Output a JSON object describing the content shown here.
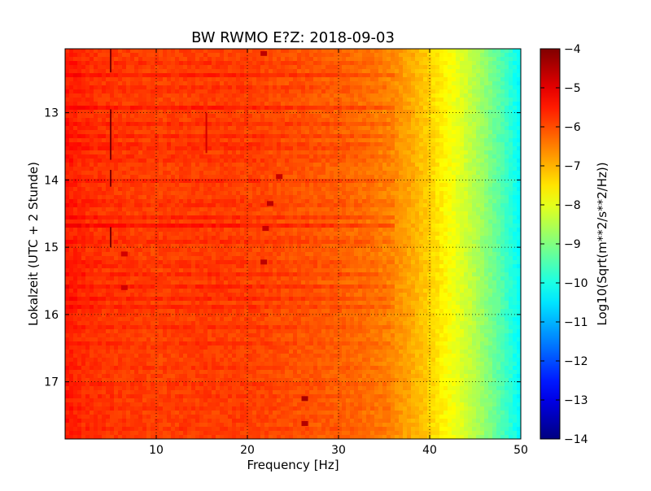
{
  "chart_data": {
    "type": "heatmap",
    "title": "BW RWMO E?Z: 2018-09-03",
    "xlabel": "Frequency [Hz]",
    "ylabel": "Lokalzeit (UTC + 2 Stunde)",
    "xlim": [
      0,
      50
    ],
    "ylim": [
      12.05,
      17.85
    ],
    "y_inverted": true,
    "grid": true,
    "x_ticks": [
      {
        "value": 10,
        "label": "10"
      },
      {
        "value": 20,
        "label": "20"
      },
      {
        "value": 30,
        "label": "30"
      },
      {
        "value": 40,
        "label": "40"
      },
      {
        "value": 50,
        "label": "50"
      }
    ],
    "y_ticks": [
      {
        "value": 13,
        "label": "13"
      },
      {
        "value": 14,
        "label": "14"
      },
      {
        "value": 15,
        "label": "15"
      },
      {
        "value": 16,
        "label": "16"
      },
      {
        "value": 17,
        "label": "17"
      }
    ],
    "colorbar": {
      "label": "Log10(Sqrt(m**2/s**2/Hz))",
      "colormap": "jet",
      "range": [
        -14,
        -4
      ],
      "ticks": [
        {
          "value": -4,
          "label": "−4"
        },
        {
          "value": -5,
          "label": "−5"
        },
        {
          "value": -6,
          "label": "−6"
        },
        {
          "value": -7,
          "label": "−7"
        },
        {
          "value": -8,
          "label": "−8"
        },
        {
          "value": -9,
          "label": "−9"
        },
        {
          "value": -10,
          "label": "−10"
        },
        {
          "value": -11,
          "label": "−11"
        },
        {
          "value": -12,
          "label": "−12"
        },
        {
          "value": -13,
          "label": "−13"
        },
        {
          "value": -14,
          "label": "−14"
        }
      ]
    },
    "frequency_profile": {
      "frequencies": [
        0,
        2,
        5,
        10,
        15,
        20,
        25,
        30,
        33,
        36,
        38,
        40,
        42,
        44,
        46,
        48,
        50
      ],
      "levels": [
        -5.5,
        -5.7,
        -5.8,
        -5.9,
        -5.85,
        -5.9,
        -6.05,
        -6.2,
        -6.35,
        -6.6,
        -6.9,
        -7.3,
        -7.75,
        -8.2,
        -8.8,
        -9.5,
        -10.3
      ]
    },
    "bands": [
      {
        "time": 12.28,
        "level_shift": 0.25
      },
      {
        "time": 12.45,
        "level_shift": 0.35
      },
      {
        "time": 12.65,
        "level_shift": 0.3
      },
      {
        "time": 12.92,
        "level_shift": 0.4
      },
      {
        "time": 13.18,
        "level_shift": 0.3
      },
      {
        "time": 13.35,
        "level_shift": 0.25
      },
      {
        "time": 13.5,
        "level_shift": 0.45
      },
      {
        "time": 13.68,
        "level_shift": 0.3
      },
      {
        "time": 14.02,
        "level_shift": 0.25
      },
      {
        "time": 14.35,
        "level_shift": 0.3
      },
      {
        "time": 14.55,
        "level_shift": 0.3
      },
      {
        "time": 14.68,
        "level_shift": 0.45
      },
      {
        "time": 14.9,
        "level_shift": 0.3
      },
      {
        "time": 15.25,
        "level_shift": 0.3
      },
      {
        "time": 15.42,
        "level_shift": 0.35
      },
      {
        "time": 15.6,
        "level_shift": 0.4
      },
      {
        "time": 15.75,
        "level_shift": 0.35
      },
      {
        "time": 15.9,
        "level_shift": 0.3
      },
      {
        "time": 16.18,
        "level_shift": 0.2
      },
      {
        "time": 16.45,
        "level_shift": 0.2
      },
      {
        "time": 16.78,
        "level_shift": 0.15
      },
      {
        "time": 17.05,
        "level_shift": 0.2
      },
      {
        "time": 17.2,
        "level_shift": 0.15
      },
      {
        "time": 17.38,
        "level_shift": 0.2
      },
      {
        "time": 17.55,
        "level_shift": 0.15
      },
      {
        "time": 17.72,
        "level_shift": 0.2
      }
    ],
    "spots": [
      {
        "frequency": 21.8,
        "time": 12.12,
        "level": -4.6
      },
      {
        "frequency": 23.5,
        "time": 13.95,
        "level": -4.7
      },
      {
        "frequency": 22.5,
        "time": 14.35,
        "level": -4.6
      },
      {
        "frequency": 22.0,
        "time": 14.72,
        "level": -4.7
      },
      {
        "frequency": 21.8,
        "time": 15.22,
        "level": -4.6
      },
      {
        "frequency": 26.3,
        "time": 17.25,
        "level": -4.4
      },
      {
        "frequency": 26.3,
        "time": 17.62,
        "level": -4.5
      },
      {
        "frequency": 6.5,
        "time": 15.1,
        "level": -4.8
      },
      {
        "frequency": 6.5,
        "time": 15.6,
        "level": -4.8
      }
    ],
    "vertical_lines": [
      {
        "frequency": 5.0,
        "time_start": 12.05,
        "time_end": 12.4,
        "level": -3.8
      },
      {
        "frequency": 5.0,
        "time_start": 12.95,
        "time_end": 13.7,
        "level": -3.8
      },
      {
        "frequency": 5.0,
        "time_start": 13.85,
        "time_end": 14.1,
        "level": -3.9
      },
      {
        "frequency": 5.0,
        "time_start": 14.7,
        "time_end": 15.0,
        "level": -3.9
      },
      {
        "frequency": 15.5,
        "time_start": 13.0,
        "time_end": 13.6,
        "level": -4.8
      }
    ]
  }
}
